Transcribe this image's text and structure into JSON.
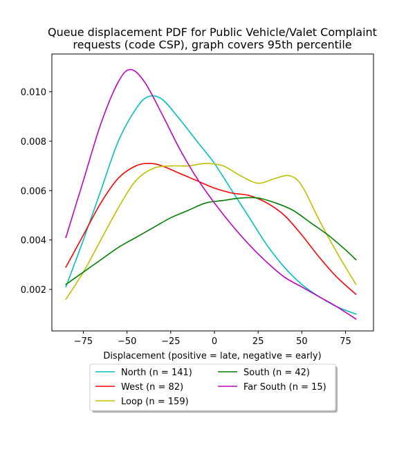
{
  "chart_data": {
    "type": "line",
    "title": [
      "Queue displacement PDF for Public Vehicle/Valet Complaint",
      "requests (code CSP), graph covers 95th percentile"
    ],
    "xlabel": "Displacement (positive = late, negative = early)",
    "ylabel": "",
    "xlim": [
      -93,
      91
    ],
    "ylim": [
      0.00032,
      0.01153
    ],
    "xticks": [
      -75,
      -50,
      -25,
      0,
      25,
      50,
      75
    ],
    "xtick_labels": [
      "−75",
      "−50",
      "−25",
      "0",
      "25",
      "50",
      "75"
    ],
    "yticks": [
      0.002,
      0.004,
      0.006,
      0.008,
      0.01
    ],
    "ytick_labels": [
      "0.002",
      "0.004",
      "0.006",
      "0.008",
      "0.010"
    ],
    "grid": false,
    "legend_position": "below-center",
    "legend_columns": 2,
    "series": [
      {
        "name": "North (n = 141)",
        "color": "#00bfbf",
        "x": [
          -85,
          -75,
          -65,
          -55,
          -45,
          -38,
          -30,
          -20,
          -10,
          0,
          10,
          20,
          30,
          40,
          50,
          60,
          70,
          81
        ],
        "y": [
          0.0021,
          0.004,
          0.006,
          0.008,
          0.0093,
          0.0098,
          0.0097,
          0.0089,
          0.008,
          0.0071,
          0.006,
          0.0049,
          0.0038,
          0.0029,
          0.0022,
          0.0017,
          0.0013,
          0.001
        ]
      },
      {
        "name": "West (n = 82)",
        "color": "#ff0000",
        "x": [
          -85,
          -75,
          -65,
          -55,
          -45,
          -37,
          -30,
          -20,
          -10,
          0,
          10,
          20,
          30,
          40,
          50,
          60,
          70,
          81
        ],
        "y": [
          0.0029,
          0.0042,
          0.0055,
          0.0065,
          0.007,
          0.0071,
          0.007,
          0.0067,
          0.0064,
          0.0061,
          0.0059,
          0.0058,
          0.0055,
          0.005,
          0.0042,
          0.0033,
          0.0025,
          0.0018
        ]
      },
      {
        "name": "Loop (n = 159)",
        "color": "#bfbf00",
        "x": [
          -85,
          -75,
          -65,
          -55,
          -45,
          -35,
          -25,
          -15,
          -5,
          5,
          15,
          25,
          35,
          43,
          50,
          60,
          70,
          81
        ],
        "y": [
          0.0016,
          0.0027,
          0.004,
          0.0053,
          0.0064,
          0.0069,
          0.007,
          0.007,
          0.0071,
          0.007,
          0.0066,
          0.0063,
          0.0065,
          0.0066,
          0.0062,
          0.0048,
          0.0035,
          0.0022
        ]
      },
      {
        "name": "South (n = 42)",
        "color": "#008000",
        "x": [
          -85,
          -75,
          -65,
          -55,
          -45,
          -35,
          -25,
          -15,
          -5,
          5,
          15,
          25,
          35,
          45,
          55,
          65,
          75,
          81
        ],
        "y": [
          0.0022,
          0.0027,
          0.0032,
          0.0037,
          0.0041,
          0.0045,
          0.0049,
          0.0052,
          0.0055,
          0.0056,
          0.0057,
          0.0057,
          0.0055,
          0.0052,
          0.0047,
          0.0042,
          0.0036,
          0.0032
        ]
      },
      {
        "name": "Far South (n = 15)",
        "color": "#bf00bf",
        "x": [
          -85,
          -75,
          -65,
          -55,
          -48,
          -40,
          -30,
          -20,
          -10,
          0,
          10,
          20,
          30,
          40,
          50,
          60,
          70,
          81
        ],
        "y": [
          0.0041,
          0.0064,
          0.0087,
          0.0104,
          0.0109,
          0.0104,
          0.0091,
          0.0077,
          0.0065,
          0.0055,
          0.0046,
          0.0038,
          0.0031,
          0.0025,
          0.0021,
          0.0017,
          0.0013,
          0.0008
        ]
      }
    ]
  }
}
